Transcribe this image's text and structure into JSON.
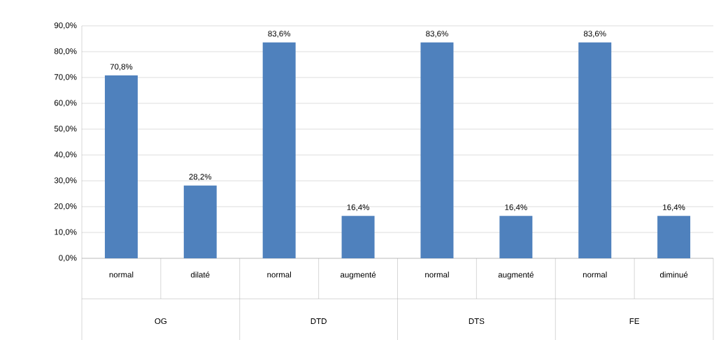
{
  "chart_data": {
    "type": "bar",
    "categories": [
      "normal",
      "dilaté",
      "normal",
      "augmenté",
      "normal",
      "augmenté",
      "normal",
      "diminué"
    ],
    "values": [
      70.8,
      28.2,
      83.6,
      16.4,
      83.6,
      16.4,
      83.6,
      16.4
    ],
    "value_labels": [
      "70,8%",
      "28,2%",
      "83,6%",
      "16,4%",
      "83,6%",
      "16,4%",
      "83,6%",
      "16,4%"
    ],
    "color": "#4f81bd",
    "ylim": [
      0,
      90
    ],
    "yticks": [
      {
        "value": 0,
        "label": "0,0%"
      },
      {
        "value": 10,
        "label": "10,0%"
      },
      {
        "value": 20,
        "label": "20,0%"
      },
      {
        "value": 30,
        "label": "30,0%"
      },
      {
        "value": 40,
        "label": "40,0%"
      },
      {
        "value": 50,
        "label": "50,0%"
      },
      {
        "value": 60,
        "label": "60,0%"
      },
      {
        "value": 70,
        "label": "70,0%"
      },
      {
        "value": 80,
        "label": "80,0%"
      },
      {
        "value": 90,
        "label": "90,0%"
      }
    ],
    "grid": "y",
    "annotations": [
      "OG",
      "DTD",
      "DTS",
      "FE"
    ]
  }
}
